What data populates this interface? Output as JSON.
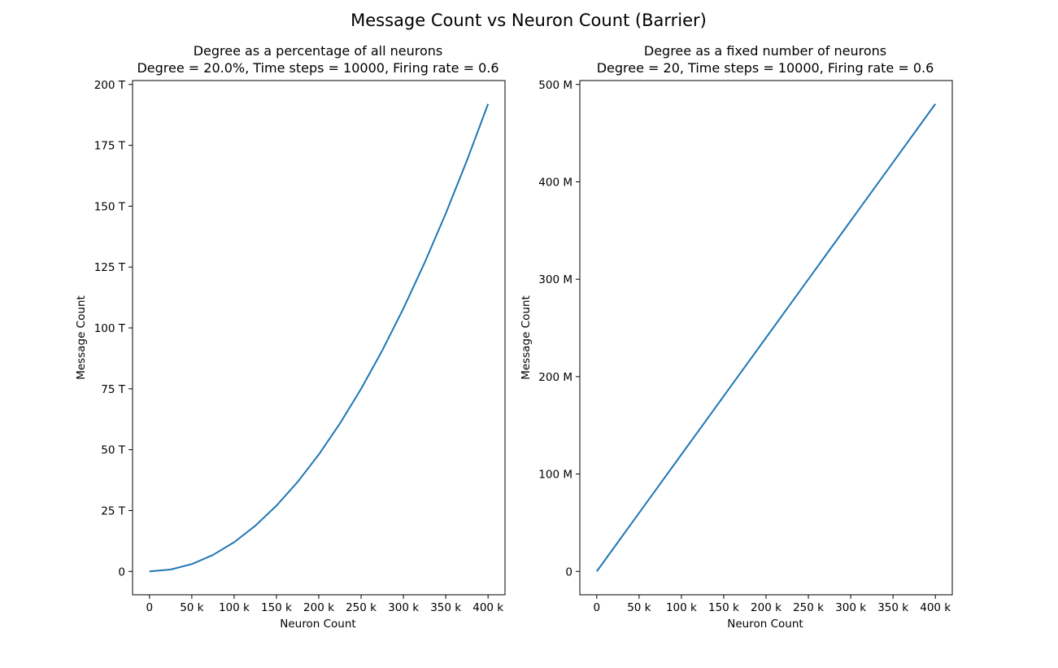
{
  "figure": {
    "title": "Message Count vs Neuron Count (Barrier)"
  },
  "chart_data": [
    {
      "type": "line",
      "title": "Degree as a percentage of all neurons",
      "subtitle": "Degree = 20.0%, Time steps = 10000, Firing rate = 0.6",
      "xlabel": "Neuron Count",
      "ylabel": "Message Count",
      "xlim": [
        -20000,
        420000
      ],
      "ylim": [
        -9600000000000,
        201600000000000
      ],
      "xticks": [
        0,
        50000,
        100000,
        150000,
        200000,
        250000,
        300000,
        350000,
        400000
      ],
      "xtick_labels": [
        "0",
        "50 k",
        "100 k",
        "150 k",
        "200 k",
        "250 k",
        "300 k",
        "350 k",
        "400 k"
      ],
      "yticks": [
        0,
        25000000000000,
        50000000000000,
        75000000000000,
        100000000000000,
        125000000000000,
        150000000000000,
        175000000000000,
        200000000000000
      ],
      "ytick_labels": [
        "0",
        "25 T",
        "50 T",
        "75 T",
        "100 T",
        "125 T",
        "150 T",
        "175 T",
        "200 T"
      ],
      "grid": false,
      "series": [
        {
          "color": "#1f77b4",
          "x": [
            0,
            25000,
            50000,
            75000,
            100000,
            125000,
            150000,
            175000,
            200000,
            225000,
            250000,
            275000,
            300000,
            325000,
            350000,
            375000,
            400000
          ],
          "y": [
            0,
            750000000000,
            3000000000000,
            6750000000000,
            12000000000000,
            18750000000000,
            27000000000000,
            36750000000000,
            48000000000000,
            60750000000000,
            75000000000000,
            90750000000000,
            108000000000000,
            126750000000000,
            147000000000000,
            168750000000000,
            192000000000000
          ]
        }
      ]
    },
    {
      "type": "line",
      "title": "Degree as a fixed number of neurons",
      "subtitle": "Degree = 20, Time steps = 10000, Firing rate = 0.6",
      "xlabel": "Neuron Count",
      "ylabel": "Message Count",
      "xlim": [
        -20000,
        420000
      ],
      "ylim": [
        -24000000,
        504000000
      ],
      "xticks": [
        0,
        50000,
        100000,
        150000,
        200000,
        250000,
        300000,
        350000,
        400000
      ],
      "xtick_labels": [
        "0",
        "50 k",
        "100 k",
        "150 k",
        "200 k",
        "250 k",
        "300 k",
        "350 k",
        "400 k"
      ],
      "yticks": [
        0,
        100000000,
        200000000,
        300000000,
        400000000,
        500000000
      ],
      "ytick_labels": [
        "0",
        "100 M",
        "200 M",
        "300 M",
        "400 M",
        "500 M"
      ],
      "grid": false,
      "series": [
        {
          "color": "#1f77b4",
          "x": [
            0,
            50000,
            100000,
            150000,
            200000,
            250000,
            300000,
            350000,
            400000
          ],
          "y": [
            0,
            60000000,
            120000000,
            180000000,
            240000000,
            300000000,
            360000000,
            420000000,
            480000000
          ]
        }
      ]
    }
  ]
}
